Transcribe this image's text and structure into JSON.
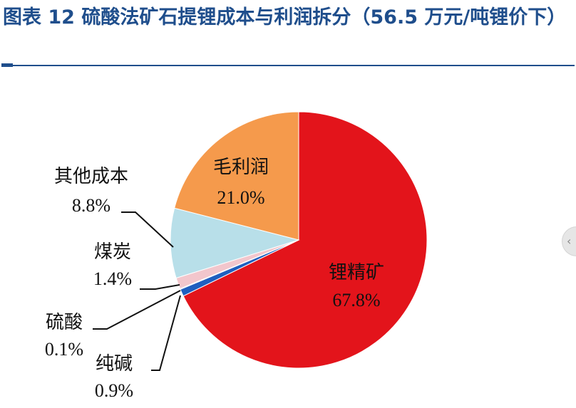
{
  "page": {
    "title": "图表 12  硫酸法矿石提锂成本与利润拆分（56.5 万元/吨锂价下）"
  },
  "chart_data": {
    "type": "pie",
    "title": "图表 12  硫酸法矿石提锂成本与利润拆分（56.5 万元/吨锂价下）",
    "slices": [
      {
        "label": "锂精矿",
        "value": 67.8,
        "value_label": "67.8%",
        "color": "#e3141b"
      },
      {
        "label": "纯碱",
        "value": 0.9,
        "value_label": "0.9%",
        "color": "#1f5fbf"
      },
      {
        "label": "硫酸",
        "value": 0.1,
        "value_label": "0.1%",
        "color": "#0d2d6b"
      },
      {
        "label": "煤炭",
        "value": 1.4,
        "value_label": "1.4%",
        "color": "#f2c6cc"
      },
      {
        "label": "其他成本",
        "value": 8.8,
        "value_label": "8.8%",
        "color": "#b8dfe9"
      },
      {
        "label": "毛利润",
        "value": 21.0,
        "value_label": "21.0%",
        "color": "#f59a4c"
      }
    ],
    "start": "12 o'clock",
    "direction": "clockwise",
    "legend": "none"
  }
}
